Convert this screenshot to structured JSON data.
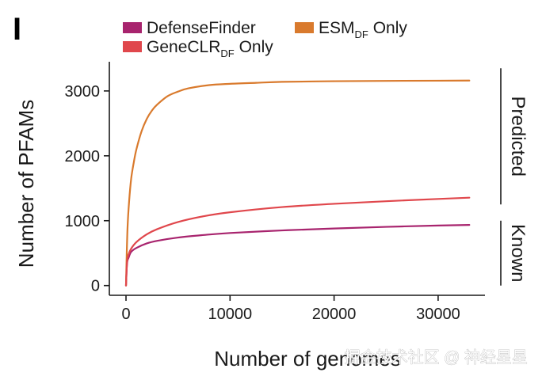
{
  "panel_label": "I",
  "watermark": "掘金技术社区 @ 神经星星",
  "chart_data": {
    "type": "line",
    "title": "",
    "xlabel": "Number of genomes",
    "ylabel": "Number of PFAMs",
    "xlim": [
      -1600,
      34500
    ],
    "ylim": [
      -150,
      3450
    ],
    "x_ticks": [
      0,
      10000,
      20000,
      30000
    ],
    "y_ticks": [
      0,
      1000,
      2000,
      3000
    ],
    "x_tick_labels": [
      "0",
      "10000",
      "20000",
      "30000"
    ],
    "y_tick_labels": [
      "0",
      "1000",
      "2000",
      "3000"
    ],
    "legend": [
      {
        "series": "DefenseFinder",
        "text": "DefenseFinder",
        "sub": ""
      },
      {
        "series": "ESM_DF Only",
        "text": "ESM",
        "sub": "DF",
        "suffix": " Only"
      },
      {
        "series": "GeneCLR_DF Only",
        "text": "GeneCLR",
        "sub": "DF",
        "suffix": " Only"
      }
    ],
    "legend_position": "top",
    "side_labels": [
      {
        "text": "Predicted",
        "y_range": [
          1250,
          3350
        ]
      },
      {
        "text": "Known",
        "y_range": [
          0,
          1000
        ]
      }
    ],
    "colors": {
      "DefenseFinder": "#a8246e",
      "ESM_DF Only": "#d97a2d",
      "GeneCLR_DF Only": "#e0474c"
    },
    "series": [
      {
        "name": "DefenseFinder",
        "color": "#a8246e",
        "x": [
          0,
          100,
          250,
          500,
          1000,
          2000,
          3000,
          5000,
          7500,
          10000,
          15000,
          20000,
          25000,
          30000,
          33000
        ],
        "y": [
          0,
          340,
          430,
          520,
          580,
          650,
          690,
          740,
          780,
          810,
          850,
          880,
          905,
          925,
          935
        ]
      },
      {
        "name": "ESM_DF Only",
        "color": "#d97a2d",
        "x": [
          0,
          50,
          150,
          300,
          500,
          750,
          1000,
          1500,
          2000,
          2500,
          3000,
          4000,
          5000,
          6000,
          8000,
          10000,
          12500,
          15000,
          20000,
          25000,
          30000,
          33000
        ],
        "y": [
          0,
          350,
          900,
          1300,
          1650,
          1900,
          2100,
          2380,
          2570,
          2700,
          2790,
          2920,
          2990,
          3040,
          3090,
          3110,
          3125,
          3140,
          3150,
          3155,
          3158,
          3160
        ]
      },
      {
        "name": "GeneCLR_DF Only",
        "color": "#e0474c",
        "x": [
          0,
          100,
          250,
          500,
          1000,
          2000,
          3000,
          5000,
          7500,
          10000,
          15000,
          20000,
          25000,
          30000,
          33000
        ],
        "y": [
          0,
          360,
          480,
          570,
          670,
          790,
          870,
          980,
          1070,
          1130,
          1210,
          1260,
          1300,
          1335,
          1355
        ]
      }
    ]
  }
}
